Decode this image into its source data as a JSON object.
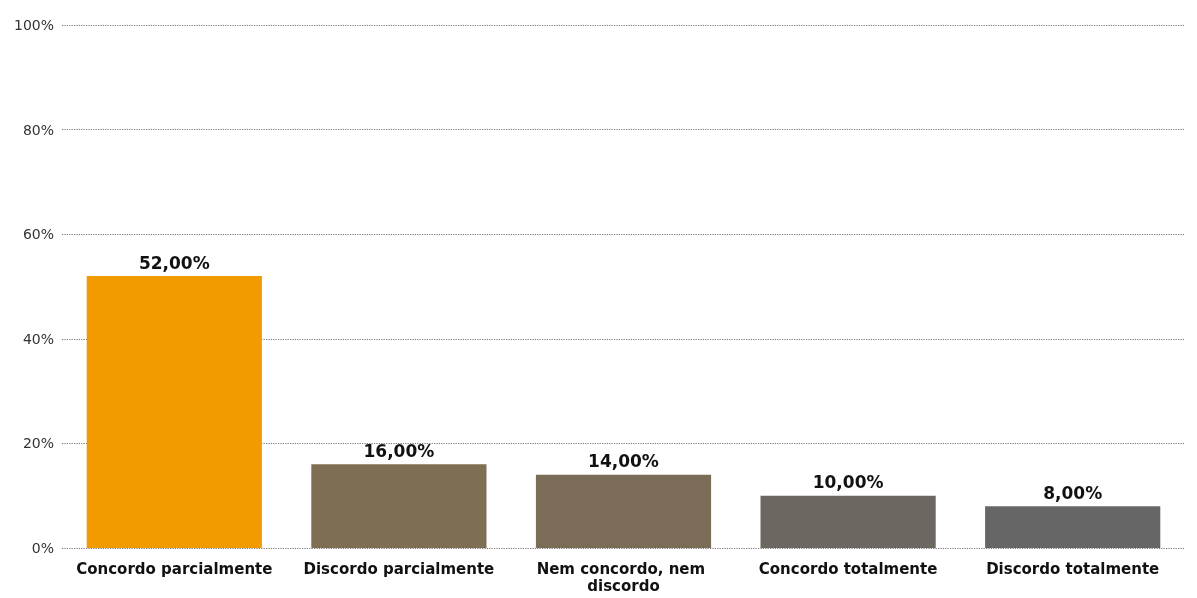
{
  "chart_data": {
    "type": "bar",
    "categories": [
      "Concordo parcialmente",
      "Discordo parcialmente",
      "Nem concordo, nem discordo",
      "Concordo totalmente",
      "Discordo totalmente"
    ],
    "values": [
      52,
      16,
      14,
      10,
      8
    ],
    "colors": [
      "#f29b00",
      "#7e6e52",
      "#7a6c56",
      "#6c6761",
      "#666666"
    ],
    "value_labels": [
      "52,00%",
      "16,00%",
      "14,00%",
      "10,00%",
      "8,00%"
    ],
    "ylim": [
      0,
      100
    ],
    "yticks": [
      {
        "value": 0,
        "label": "0%"
      },
      {
        "value": 20,
        "label": "20%"
      },
      {
        "value": 40,
        "label": "40%"
      },
      {
        "value": 60,
        "label": "60%"
      },
      {
        "value": 80,
        "label": "80%"
      },
      {
        "value": 100,
        "label": "100%"
      }
    ],
    "grid": "y"
  }
}
